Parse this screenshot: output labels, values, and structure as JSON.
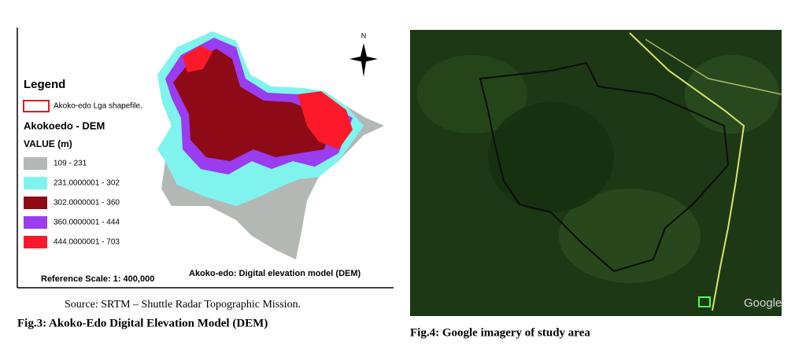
{
  "figures": [
    {
      "legend": {
        "title": "Legend",
        "shapefile": "Akoko-edo Lga shapefile.",
        "shapefile_color": "#e0191f",
        "layer": "Akokoedo - DEM",
        "field": "VALUE (m)",
        "classes": [
          {
            "label": "109 - 231",
            "color": "#b3b8b4"
          },
          {
            "label": "231.0000001 - 302",
            "color": "#7ff4ee"
          },
          {
            "label": "302.0000001 - 360",
            "color": "#8e0a16"
          },
          {
            "label": "360.0000001 - 444",
            "color": "#9a3cf0"
          },
          {
            "label": "444.0000001 - 703",
            "color": "#fc1a2a"
          }
        ]
      },
      "north": "N",
      "scale": "Reference Scale: 1: 400,000",
      "map_title": "Akoko-edo: Digital elevation model (DEM)",
      "source": "Source: SRTM – Shuttle Radar Topographic Mission.",
      "caption": "Fig.3: Akoko-Edo Digital Elevation Model (DEM)"
    },
    {
      "watermark": "Google",
      "caption": "Fig.4: Google imagery of study area"
    }
  ]
}
